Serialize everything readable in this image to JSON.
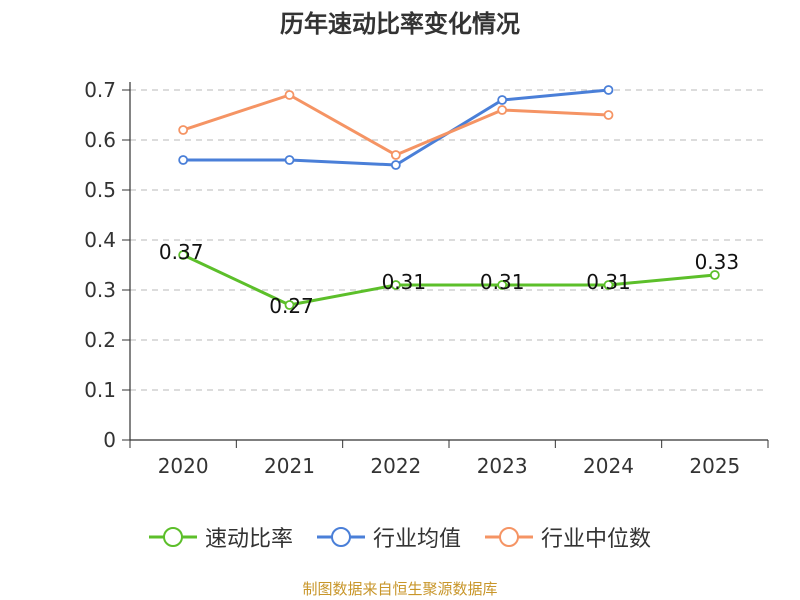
{
  "chart_data": {
    "type": "line",
    "title": "历年速动比率变化情况",
    "categories": [
      "2020",
      "2021",
      "2022",
      "2023",
      "2024",
      "2025"
    ],
    "ylim": [
      0,
      0.7
    ],
    "yticks": [
      0,
      0.1,
      0.2,
      0.3,
      0.4,
      0.5,
      0.6,
      0.7
    ],
    "ytick_labels": [
      "0",
      "0.1",
      "0.2",
      "0.3",
      "0.4",
      "0.5",
      "0.6",
      "0.7"
    ],
    "grid": true,
    "legend_position": "bottom",
    "series": [
      {
        "name": "速动比率",
        "color": "#5cbf2a",
        "values": [
          0.37,
          0.27,
          0.31,
          0.31,
          0.31,
          0.33
        ],
        "show_labels": true
      },
      {
        "name": "行业均值",
        "color": "#4a7fd8",
        "values": [
          0.56,
          0.56,
          0.55,
          0.68,
          0.7,
          null
        ],
        "show_labels": false
      },
      {
        "name": "行业中位数",
        "color": "#f59464",
        "values": [
          0.62,
          0.69,
          0.57,
          0.66,
          0.65,
          null
        ],
        "show_labels": false
      }
    ]
  },
  "footer": {
    "source": "制图数据来自恒生聚源数据库"
  }
}
